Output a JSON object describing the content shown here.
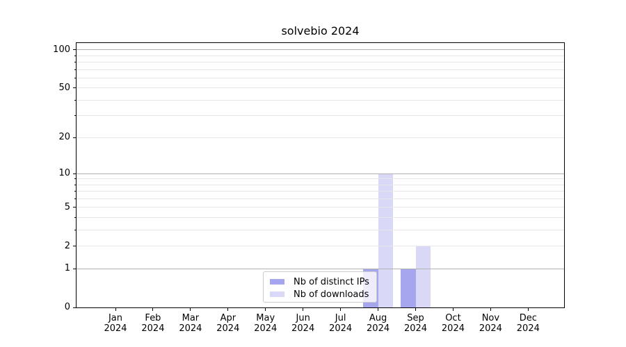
{
  "chart_data": {
    "type": "bar",
    "title": "solvebio 2024",
    "categories": [
      "Jan",
      "Feb",
      "Mar",
      "Apr",
      "May",
      "Jun",
      "Jul",
      "Aug",
      "Sep",
      "Oct",
      "Nov",
      "Dec"
    ],
    "category_year": "2024",
    "series": [
      {
        "name": "Nb of distinct IPs",
        "color": "#a6a6ef",
        "values": [
          0,
          0,
          0,
          0,
          0,
          0,
          0,
          1,
          1,
          0,
          0,
          0
        ]
      },
      {
        "name": "Nb of downloads",
        "color": "#d9d9f7",
        "values": [
          0,
          0,
          0,
          0,
          0,
          0,
          0,
          10,
          2,
          0,
          0,
          0
        ]
      }
    ],
    "xlabel": "",
    "ylabel": "",
    "yscale": "log1p",
    "ylim": [
      0,
      113.3
    ],
    "yticks_labeled": [
      0,
      1,
      2,
      5,
      10,
      20,
      50,
      100
    ],
    "gridlines_major": [
      1,
      10,
      100
    ],
    "gridlines_minor": [
      2,
      3,
      4,
      5,
      6,
      7,
      8,
      9,
      20,
      30,
      40,
      50,
      60,
      70,
      80,
      90
    ],
    "grid": true,
    "legend": {
      "position": "lower center",
      "entries": [
        "Nb of distinct IPs",
        "Nb of downloads"
      ]
    },
    "colors": {
      "major_grid": "#b0b0b0",
      "minor_grid": "#e7e7e7",
      "axis": "#000000",
      "legend_border": "#cccccc"
    }
  }
}
